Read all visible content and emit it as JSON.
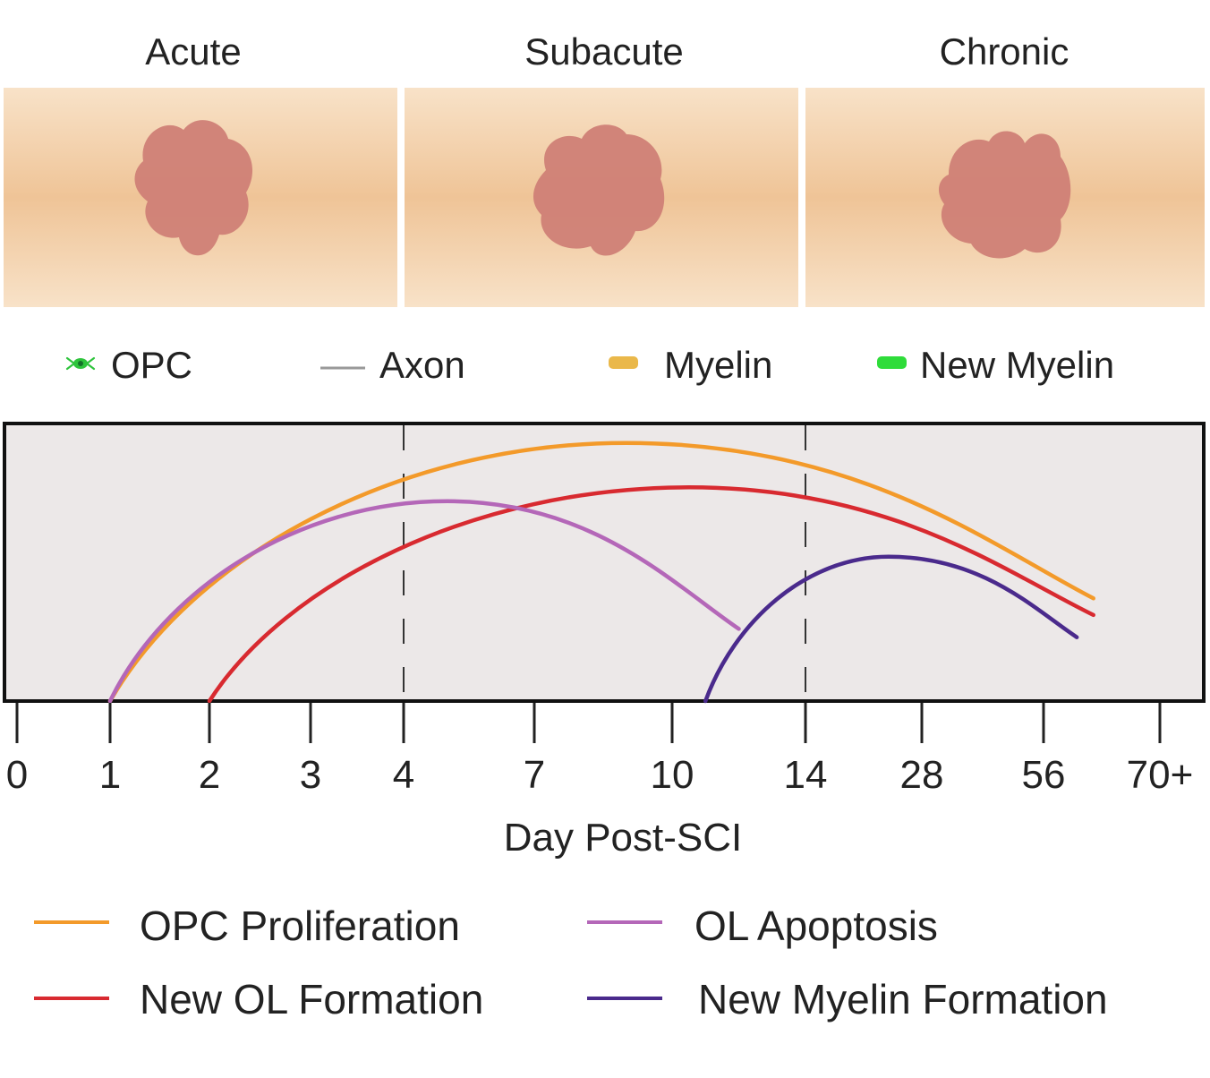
{
  "panels": [
    {
      "title": "Acute"
    },
    {
      "title": "Subacute"
    },
    {
      "title": "Chronic"
    }
  ],
  "cell_legend": [
    {
      "label": "OPC",
      "icon": "opc-cell-icon"
    },
    {
      "label": "Axon",
      "icon": "axon-line-icon"
    },
    {
      "label": "Myelin",
      "icon": "myelin-segment-icon"
    },
    {
      "label": "New Myelin",
      "icon": "new-myelin-segment-icon"
    }
  ],
  "colors": {
    "tissue": "#f3cfa6",
    "lesion": "#cf7f76",
    "myelin": "#eab84a",
    "new_myelin": "#2fdc3a",
    "opc": "#2ec43c",
    "axon": "#777777",
    "plot_bg": "#ece8e8"
  },
  "chart_data": {
    "type": "line",
    "xlabel": "Day Post-SCI",
    "x_ticks": [
      "0",
      "1",
      "2",
      "3",
      "4",
      "7",
      "10",
      "14",
      "28",
      "56",
      "70+"
    ],
    "x_scale": "non-linear (stage-spaced ticks)",
    "phase_boundaries": [
      "4",
      "14"
    ],
    "y_axis": "unlabeled relative magnitude (0-1)",
    "series": [
      {
        "name": "OPC Proliferation",
        "color": "#f39a2a",
        "start": "1",
        "peak": "~9",
        "end": "~62",
        "relative_peak": 0.93,
        "relative_end": 0.37
      },
      {
        "name": "New OL Formation",
        "color": "#d82a30",
        "start": "2",
        "peak": "~10.5",
        "end": "~62",
        "relative_peak": 0.77,
        "relative_end": 0.31
      },
      {
        "name": "OL Apoptosis",
        "color": "#b467b8",
        "start": "1",
        "peak": "~5",
        "end": "~12",
        "relative_peak": 0.72,
        "relative_end": 0.26
      },
      {
        "name": "New Myelin Formation",
        "color": "#4a2a8c",
        "start": "~11",
        "peak": "~24",
        "end": "~60",
        "relative_peak": 0.52,
        "relative_end": 0.23
      }
    ]
  }
}
